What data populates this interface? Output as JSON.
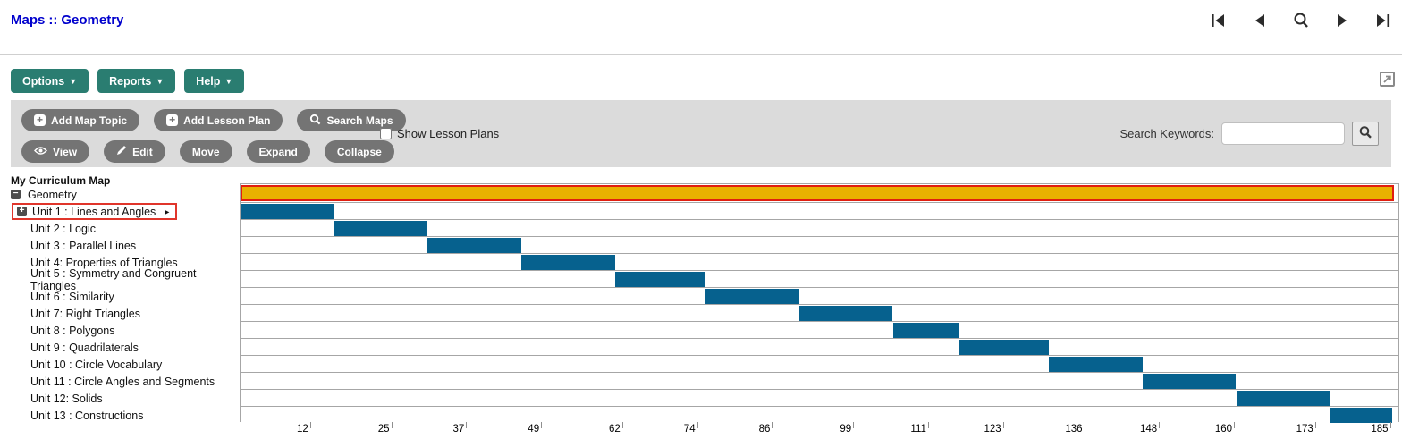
{
  "header": {
    "breadcrumb": {
      "section": "Maps",
      "separator": "::",
      "page": "Geometry"
    },
    "nav_icons": [
      "go-first",
      "go-previous",
      "search",
      "go-next",
      "go-last"
    ]
  },
  "menus": {
    "options": "Options",
    "reports": "Reports",
    "help": "Help"
  },
  "toolbar": {
    "add_map_topic": "Add Map Topic",
    "add_lesson_plan": "Add Lesson Plan",
    "search_maps": "Search Maps",
    "show_lesson_plans_label": "Show Lesson Plans",
    "show_lesson_plans_checked": false,
    "view": "View",
    "edit": "Edit",
    "move": "Move",
    "expand": "Expand",
    "collapse": "Collapse",
    "search_keywords_label": "Search Keywords:",
    "search_input_value": "",
    "search_input_placeholder": ""
  },
  "tree": {
    "title": "My Curriculum Map",
    "root": {
      "label": "Geometry",
      "state": "expanded",
      "toggle_glyph": "−"
    },
    "selected_item_arrow": "►",
    "items": [
      {
        "label": "Unit 1 : Lines and Angles",
        "expandable": true,
        "selected": true
      },
      {
        "label": "Unit 2 : Logic"
      },
      {
        "label": "Unit 3 : Parallel Lines"
      },
      {
        "label": "Unit 4: Properties of Triangles"
      },
      {
        "label": "Unit 5 : Symmetry and Congruent Triangles"
      },
      {
        "label": "Unit 6 : Similarity"
      },
      {
        "label": "Unit 7: Right Triangles"
      },
      {
        "label": "Unit 8 : Polygons"
      },
      {
        "label": "Unit 9 : Quadrilaterals"
      },
      {
        "label": "Unit 10 : Circle Vocabulary"
      },
      {
        "label": "Unit 11 : Circle Angles and Segments"
      },
      {
        "label": "Unit 12: Solids"
      },
      {
        "label": "Unit 13 : Constructions"
      }
    ]
  },
  "chart_data": {
    "type": "gantt",
    "x_unit": "school days",
    "xlim": [
      1,
      186.5
    ],
    "x_ticks": [
      12,
      25,
      37,
      49,
      62,
      74,
      86,
      99,
      111,
      123,
      136,
      148,
      160,
      173,
      185
    ],
    "grid": "horizontal-rows-only",
    "rows": [
      {
        "label": "Geometry",
        "start": 1,
        "end": 186.5,
        "role": "root",
        "selected": true
      },
      {
        "label": "Unit 1 : Lines and Angles",
        "start": 1,
        "end": 16
      },
      {
        "label": "Unit 2 : Logic",
        "start": 16,
        "end": 31
      },
      {
        "label": "Unit 3 : Parallel Lines",
        "start": 31,
        "end": 46
      },
      {
        "label": "Unit 4: Properties of Triangles",
        "start": 46,
        "end": 61
      },
      {
        "label": "Unit 5 : Symmetry and Congruent Triangles",
        "start": 61,
        "end": 75.5
      },
      {
        "label": "Unit 6 : Similarity",
        "start": 75.5,
        "end": 90.5
      },
      {
        "label": "Unit 7: Right Triangles",
        "start": 90.5,
        "end": 105.5
      },
      {
        "label": "Unit 8 : Polygons",
        "start": 105.5,
        "end": 116
      },
      {
        "label": "Unit 9 : Quadrilaterals",
        "start": 116,
        "end": 130.5
      },
      {
        "label": "Unit 10 : Circle Vocabulary",
        "start": 130.5,
        "end": 145.5
      },
      {
        "label": "Unit 11 : Circle Angles and Segments",
        "start": 145.5,
        "end": 160.5
      },
      {
        "label": "Unit 12: Solids",
        "start": 160.5,
        "end": 175.5
      },
      {
        "label": "Unit 13 : Constructions",
        "start": 175.5,
        "end": 185.5
      }
    ],
    "bar_color": "#06618E",
    "root_bar_color": "#E9B000",
    "selection_border_color": "#E01E10"
  },
  "colors": {
    "link_blue": "#0000CD",
    "accent_teal": "#2A7D71",
    "button_gray": "#747474",
    "toolbar_bg": "#DBDBDB",
    "grid_gray": "#A6A6A6",
    "highlight_red": "#E0352B"
  }
}
